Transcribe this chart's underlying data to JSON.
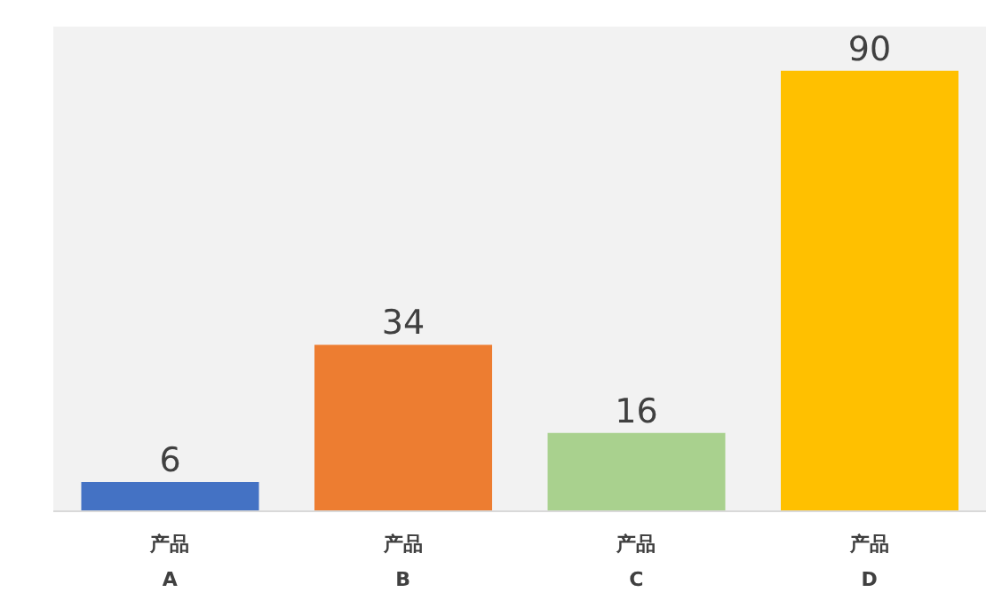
{
  "chart_data": {
    "type": "bar",
    "categories": [
      "产品 A",
      "产品 B",
      "产品 C",
      "产品 D"
    ],
    "values": [
      6,
      34,
      16,
      90
    ],
    "colors": [
      "#4472c4",
      "#ed7d31",
      "#a9d18e",
      "#ffc000"
    ],
    "data_labels": true
  }
}
